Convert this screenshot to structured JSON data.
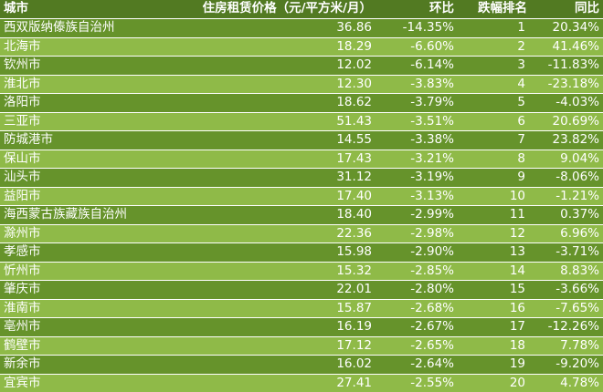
{
  "header": {
    "city": "城市",
    "price": "住房租赁价格（元/平方米/月）",
    "mom": "环比",
    "rank": "跌幅排名",
    "yoy": "同比"
  },
  "rows": [
    {
      "city": "西双版纳傣族自治州",
      "price": "36.86",
      "mom": "-14.35%",
      "rank": "1",
      "yoy": "20.34%"
    },
    {
      "city": "北海市",
      "price": "18.29",
      "mom": "-6.60%",
      "rank": "2",
      "yoy": "41.46%"
    },
    {
      "city": "钦州市",
      "price": "12.02",
      "mom": "-6.14%",
      "rank": "3",
      "yoy": "-11.83%"
    },
    {
      "city": "淮北市",
      "price": "12.30",
      "mom": "-3.83%",
      "rank": "4",
      "yoy": "-23.18%"
    },
    {
      "city": "洛阳市",
      "price": "18.62",
      "mom": "-3.79%",
      "rank": "5",
      "yoy": "-4.03%"
    },
    {
      "city": "三亚市",
      "price": "51.43",
      "mom": "-3.51%",
      "rank": "6",
      "yoy": "20.69%"
    },
    {
      "city": "防城港市",
      "price": "14.55",
      "mom": "-3.38%",
      "rank": "7",
      "yoy": "23.82%"
    },
    {
      "city": "保山市",
      "price": "17.43",
      "mom": "-3.21%",
      "rank": "8",
      "yoy": "9.04%"
    },
    {
      "city": "汕头市",
      "price": "31.12",
      "mom": "-3.19%",
      "rank": "9",
      "yoy": "-8.06%"
    },
    {
      "city": "益阳市",
      "price": "17.40",
      "mom": "-3.13%",
      "rank": "10",
      "yoy": "-1.21%"
    },
    {
      "city": "海西蒙古族藏族自治州",
      "price": "18.40",
      "mom": "-2.99%",
      "rank": "11",
      "yoy": "0.37%"
    },
    {
      "city": "滁州市",
      "price": "22.36",
      "mom": "-2.98%",
      "rank": "12",
      "yoy": "6.96%"
    },
    {
      "city": "孝感市",
      "price": "15.98",
      "mom": "-2.90%",
      "rank": "13",
      "yoy": "-3.71%"
    },
    {
      "city": "忻州市",
      "price": "15.32",
      "mom": "-2.85%",
      "rank": "14",
      "yoy": "8.83%"
    },
    {
      "city": "肇庆市",
      "price": "22.01",
      "mom": "-2.80%",
      "rank": "15",
      "yoy": "-3.66%"
    },
    {
      "city": "淮南市",
      "price": "15.87",
      "mom": "-2.68%",
      "rank": "16",
      "yoy": "-7.65%"
    },
    {
      "city": "亳州市",
      "price": "16.19",
      "mom": "-2.67%",
      "rank": "17",
      "yoy": "-12.26%"
    },
    {
      "city": "鹤壁市",
      "price": "17.12",
      "mom": "-2.65%",
      "rank": "18",
      "yoy": "7.78%"
    },
    {
      "city": "新余市",
      "price": "16.02",
      "mom": "-2.64%",
      "rank": "19",
      "yoy": "-9.20%"
    },
    {
      "city": "宜宾市",
      "price": "27.41",
      "mom": "-2.55%",
      "rank": "20",
      "yoy": "4.78%"
    }
  ],
  "colors": {
    "header": "#527a22",
    "row_dark": "#66932b",
    "row_light": "#8fba48",
    "text": "#ffffff"
  }
}
